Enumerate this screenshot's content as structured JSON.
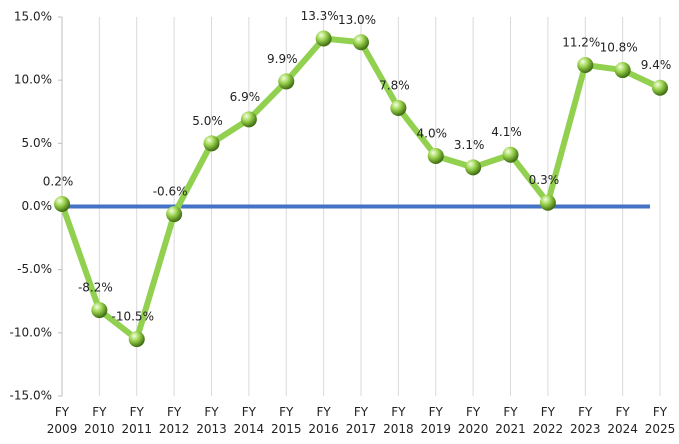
{
  "chart_data": {
    "type": "line",
    "categories": [
      "FY 2009",
      "FY 2010",
      "FY 2011",
      "FY 2012",
      "FY 2013",
      "FY 2014",
      "FY 2015",
      "FY 2016",
      "FY 2017",
      "FY 2018",
      "FY 2019",
      "FY 2020",
      "FY 2021",
      "FY 2022",
      "FY 2023",
      "FY 2024",
      "FY 2025"
    ],
    "series": [
      {
        "color": "#92d050",
        "values": [
          0.2,
          -8.2,
          -10.5,
          -0.6,
          5.0,
          6.9,
          9.9,
          13.3,
          13.0,
          7.8,
          4.0,
          3.1,
          4.1,
          0.3,
          11.2,
          10.8,
          9.4
        ],
        "value_labels": [
          "0.2%",
          "-8.2%",
          "-10.5%",
          "-0.6%",
          "5.0%",
          "6.9%",
          "9.9%",
          "13.3%",
          "13.0%",
          "7.8%",
          "4.0%",
          "3.1%",
          "4.1%",
          "0.3%",
          "11.2%",
          "10.8%",
          "9.4%"
        ]
      }
    ],
    "ylim": [
      -15,
      15
    ],
    "yticks": [
      {
        "value": -15,
        "label": "-15.0%"
      },
      {
        "value": -10,
        "label": "-10.0%"
      },
      {
        "value": -5,
        "label": "-5.0%"
      },
      {
        "value": 0,
        "label": "0.0%"
      },
      {
        "value": 5,
        "label": "5.0%"
      },
      {
        "value": 10,
        "label": "10.0%"
      },
      {
        "value": 15,
        "label": "15.0%"
      }
    ],
    "zero_line_color": "#4472c4"
  }
}
